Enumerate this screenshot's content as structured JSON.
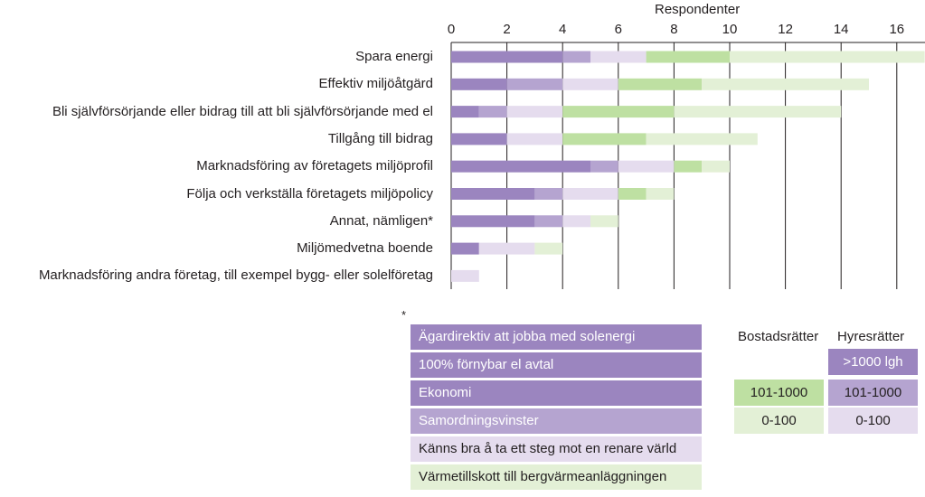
{
  "colors": {
    "hyres_over_1000": "#9b85bf",
    "hyres_101_1000": "#b5a4d0",
    "hyres_0_100": "#e5dcee",
    "bostad_101_1000": "#bee0a2",
    "bostad_0_100": "#e3f0d6",
    "axis": "#231f20"
  },
  "chart_data": {
    "type": "bar",
    "orientation": "horizontal",
    "stacked": true,
    "title": "",
    "xlabel": "Respondenter",
    "ylabel": "",
    "xlim": [
      0,
      17
    ],
    "x_ticks": [
      0,
      2,
      4,
      6,
      8,
      10,
      12,
      14,
      16
    ],
    "categories": [
      "Spara energi",
      "Effektiv miljöåtgärd",
      "Bli självförsörjande eller bidrag till att bli självförsörjande med el",
      "Tillgång till bidrag",
      "Marknadsföring av företagets miljöprofil",
      "Följa och verkställa företagets miljöpolicy",
      "Annat, nämligen*",
      "Miljömedvetna boende",
      "Marknadsföring andra företag, till exempel bygg- eller solelföretag"
    ],
    "series": [
      {
        "name": "Hyresrätter >1000 lgh",
        "color_key": "hyres_over_1000",
        "values": [
          4,
          2,
          1,
          2,
          5,
          3,
          3,
          1,
          0
        ]
      },
      {
        "name": "Hyresrätter 101-1000",
        "color_key": "hyres_101_1000",
        "values": [
          1,
          2,
          1,
          0,
          1,
          1,
          1,
          0,
          0
        ]
      },
      {
        "name": "Hyresrätter 0-100",
        "color_key": "hyres_0_100",
        "values": [
          2,
          2,
          2,
          2,
          2,
          2,
          1,
          2,
          1
        ]
      },
      {
        "name": "Bostadsrätter 101-1000",
        "color_key": "bostad_101_1000",
        "values": [
          3,
          3,
          4,
          3,
          1,
          1,
          0,
          0,
          0
        ]
      },
      {
        "name": "Bostadsrätter 0-100",
        "color_key": "bostad_0_100",
        "values": [
          7,
          6,
          6,
          4,
          1,
          1,
          1,
          1,
          0
        ]
      }
    ],
    "legend": {
      "col_headers": [
        "Bostadsrätter",
        "Hyresrätter"
      ],
      "hyres_labels": [
        ">1000 lgh",
        "101-1000",
        "0-100"
      ],
      "bostad_labels": [
        "101-1000",
        "0-100"
      ],
      "placement": "bottom-right"
    },
    "footnote": {
      "marker": "*",
      "items": [
        {
          "text": "Ägardirektiv att jobba med solenergi",
          "color_key": "hyres_over_1000"
        },
        {
          "text": "100% förnybar el avtal",
          "color_key": "hyres_over_1000"
        },
        {
          "text": "Ekonomi",
          "color_key": "hyres_over_1000"
        },
        {
          "text": "Samordningsvinster",
          "color_key": "hyres_101_1000"
        },
        {
          "text": "Känns bra å ta ett steg mot en renare värld",
          "color_key": "hyres_0_100"
        },
        {
          "text": "Värmetillskott till bergvärmeanläggningen",
          "color_key": "bostad_0_100"
        }
      ]
    }
  }
}
